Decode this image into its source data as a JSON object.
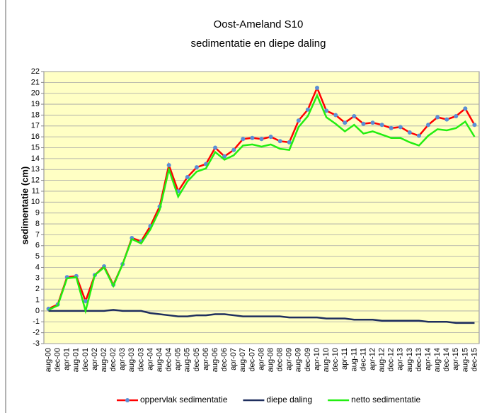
{
  "chart_data": {
    "type": "line",
    "title": "Oost-Ameland S10",
    "subtitle": "sedimentatie en diepe daling",
    "y_label": "sedimentatie (cm)",
    "categories": [
      "aug-00",
      "dec-00",
      "apr-01",
      "aug-01",
      "dec-01",
      "apr-02",
      "aug-02",
      "dec-02",
      "apr-03",
      "aug-03",
      "dec-03",
      "apr-04",
      "aug-04",
      "dec-04",
      "apr-05",
      "aug-05",
      "dec-05",
      "apr-06",
      "aug-06",
      "dec-06",
      "apr-07",
      "aug-07",
      "dec-07",
      "apr-08",
      "aug-08",
      "dec-08",
      "apr-09",
      "aug-09",
      "dec-09",
      "apr-10",
      "aug-10",
      "dec-10",
      "apr-11",
      "aug-11",
      "dec-11",
      "apr-12",
      "aug-12",
      "dec-12",
      "apr-13",
      "aug-13",
      "dec-13",
      "apr-14",
      "aug-14",
      "dec-14",
      "apr-15",
      "aug-15",
      "dec-15"
    ],
    "series": [
      {
        "name": "oppervlak sedimentatie",
        "color": "#ff0000",
        "marker_color": "#5b8fd6",
        "values": [
          0.2,
          0.6,
          3.1,
          3.2,
          0.9,
          3.3,
          4.1,
          2.4,
          4.3,
          6.7,
          6.4,
          7.8,
          9.6,
          13.4,
          11.0,
          12.3,
          13.2,
          13.5,
          15.0,
          14.2,
          14.8,
          15.8,
          15.9,
          15.8,
          16.0,
          15.6,
          15.5,
          17.5,
          18.5,
          20.5,
          18.4,
          18.0,
          17.3,
          17.9,
          17.2,
          17.3,
          17.1,
          16.8,
          16.9,
          16.4,
          16.1,
          17.1,
          17.8,
          17.6,
          17.9,
          18.6,
          17.1
        ]
      },
      {
        "name": "diepe daling",
        "color": "#1f2f5e",
        "values": [
          0,
          0,
          0,
          0,
          0,
          0,
          0,
          0.1,
          0,
          0,
          0,
          -0.2,
          -0.3,
          -0.4,
          -0.5,
          -0.5,
          -0.4,
          -0.4,
          -0.3,
          -0.3,
          -0.4,
          -0.5,
          -0.5,
          -0.5,
          -0.5,
          -0.5,
          -0.6,
          -0.6,
          -0.6,
          -0.6,
          -0.7,
          -0.7,
          -0.7,
          -0.8,
          -0.8,
          -0.8,
          -0.9,
          -0.9,
          -0.9,
          -0.9,
          -0.9,
          -1.0,
          -1.0,
          -1.0,
          -1.1,
          -1.1,
          -1.1
        ]
      },
      {
        "name": "netto sedimentatie",
        "color": "#22ee11",
        "values": [
          0.1,
          0.5,
          3.0,
          3.1,
          0.0,
          3.3,
          4.0,
          2.3,
          4.3,
          6.6,
          6.2,
          7.5,
          9.3,
          13.0,
          10.5,
          11.9,
          12.8,
          13.1,
          14.6,
          13.9,
          14.3,
          15.2,
          15.3,
          15.1,
          15.3,
          14.9,
          14.8,
          16.9,
          17.9,
          19.8,
          17.8,
          17.2,
          16.5,
          17.1,
          16.3,
          16.5,
          16.2,
          15.9,
          15.9,
          15.5,
          15.2,
          16.1,
          16.7,
          16.6,
          16.8,
          17.4,
          16.0
        ]
      }
    ],
    "ylim": [
      -3,
      22
    ],
    "yticks": [
      -3,
      -2,
      -1,
      0,
      1,
      2,
      3,
      4,
      5,
      6,
      7,
      8,
      9,
      10,
      11,
      12,
      13,
      14,
      15,
      16,
      17,
      18,
      19,
      20,
      21,
      22
    ],
    "grid": true,
    "legend": "bottom",
    "plot_background": "#ffffc4"
  }
}
